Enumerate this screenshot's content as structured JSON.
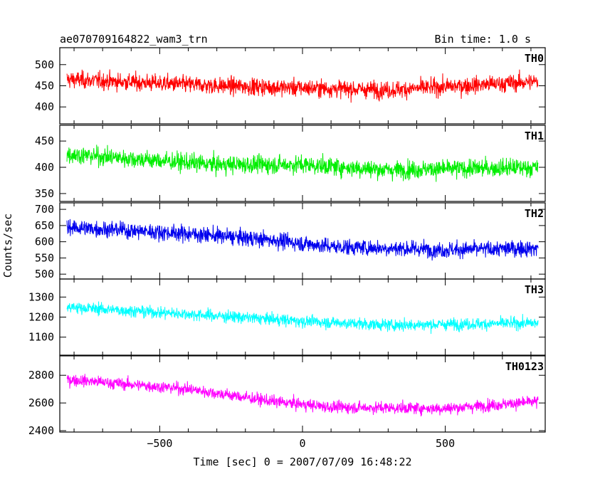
{
  "title_left": "ae070709164822_wam3_trn",
  "title_right": "Bin time: 1.0 s",
  "ylabel": "Counts/sec",
  "xlabel": "Time [sec] 0 = 2007/07/09 16:48:22",
  "chart_data": [
    {
      "type": "line",
      "name": "TH0",
      "color": "#ff0000",
      "xlim": [
        -850,
        850
      ],
      "ylim": [
        360,
        540
      ],
      "yticks": [
        400,
        450,
        500
      ],
      "x_range": [
        -825,
        825
      ],
      "mean_start": 465,
      "mean_end": 455,
      "noise": 26,
      "trend_points": [
        [
          -825,
          465
        ],
        [
          -300,
          450
        ],
        [
          0,
          445
        ],
        [
          300,
          440
        ],
        [
          825,
          460
        ]
      ]
    },
    {
      "type": "line",
      "name": "TH1",
      "color": "#00ee00",
      "xlim": [
        -850,
        850
      ],
      "ylim": [
        335,
        480
      ],
      "yticks": [
        350,
        400,
        450
      ],
      "x_range": [
        -825,
        825
      ],
      "noise": 22,
      "trend_points": [
        [
          -825,
          425
        ],
        [
          -300,
          405
        ],
        [
          0,
          405
        ],
        [
          300,
          395
        ],
        [
          825,
          400
        ]
      ]
    },
    {
      "type": "line",
      "name": "TH2",
      "color": "#0000ee",
      "xlim": [
        -850,
        850
      ],
      "ylim": [
        485,
        720
      ],
      "yticks": [
        500,
        550,
        600,
        650,
        700
      ],
      "x_range": [
        -825,
        825
      ],
      "noise": 32,
      "trend_points": [
        [
          -825,
          645
        ],
        [
          -400,
          625
        ],
        [
          -100,
          605
        ],
        [
          100,
          585
        ],
        [
          500,
          575
        ],
        [
          825,
          580
        ]
      ]
    },
    {
      "type": "line",
      "name": "TH3",
      "color": "#00ffff",
      "xlim": [
        -850,
        850
      ],
      "ylim": [
        1010,
        1390
      ],
      "yticks": [
        1100,
        1200,
        1300
      ],
      "x_range": [
        -825,
        825
      ],
      "noise": 38,
      "trend_points": [
        [
          -825,
          1250
        ],
        [
          -400,
          1215
        ],
        [
          0,
          1180
        ],
        [
          300,
          1160
        ],
        [
          825,
          1170
        ]
      ]
    },
    {
      "type": "line",
      "name": "TH0123",
      "color": "#ff00ff",
      "xlim": [
        -850,
        850
      ],
      "ylim": [
        2390,
        2940
      ],
      "yticks": [
        2400,
        2600,
        2800
      ],
      "x_range": [
        -825,
        825
      ],
      "noise": 55,
      "trend_points": [
        [
          -825,
          2770
        ],
        [
          -400,
          2700
        ],
        [
          -100,
          2610
        ],
        [
          100,
          2570
        ],
        [
          500,
          2560
        ],
        [
          825,
          2610
        ]
      ]
    }
  ],
  "xticks": [
    -500,
    0,
    500
  ],
  "xtick_labels": [
    "−500",
    "0",
    "500"
  ],
  "panel_labels": [
    "TH0",
    "TH1",
    "TH2",
    "TH3",
    "TH0123"
  ]
}
